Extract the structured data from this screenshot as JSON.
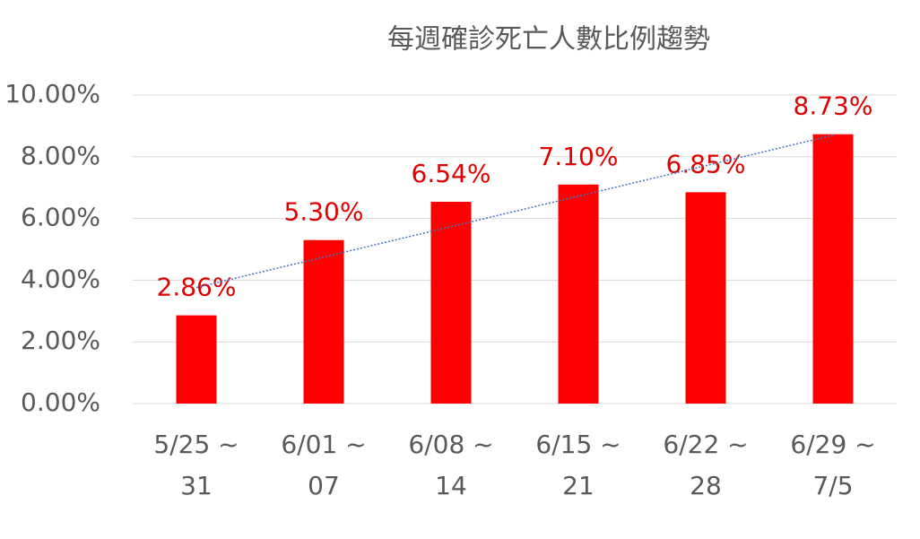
{
  "chart_data": {
    "type": "bar",
    "title": "每週確診死亡人數比例趨勢",
    "categories": [
      "5/25 ~\n31",
      "6/01 ~\n07",
      "6/08 ~\n14",
      "6/15 ~\n21",
      "6/22 ~\n28",
      "6/29 ~\n7/5"
    ],
    "values": [
      2.86,
      5.3,
      6.54,
      7.1,
      6.85,
      8.73
    ],
    "value_labels": [
      "2.86%",
      "5.30%",
      "6.54%",
      "7.10%",
      "6.85%",
      "8.73%"
    ],
    "color": "#ff0000",
    "label_color": "#e00000",
    "ylim": [
      0,
      10
    ],
    "yticks": [
      {
        "value": 0,
        "label": "0.00%"
      },
      {
        "value": 2,
        "label": "2.00%"
      },
      {
        "value": 4,
        "label": "4.00%"
      },
      {
        "value": 6,
        "label": "6.00%"
      },
      {
        "value": 8,
        "label": "8.00%"
      },
      {
        "value": 10,
        "label": "10.00%"
      }
    ],
    "grid": true,
    "trendline": "linear",
    "trendline_color": "#4472c4"
  }
}
